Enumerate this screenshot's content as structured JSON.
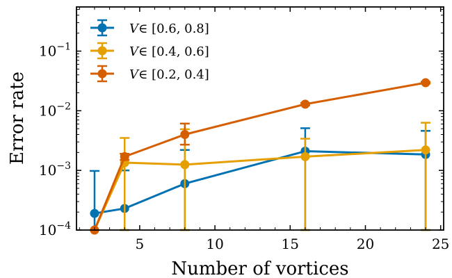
{
  "chart_data": {
    "type": "line",
    "xlabel": "Number of vortices",
    "ylabel": "Error rate",
    "xlim": [
      0.8,
      25.2
    ],
    "ylim": [
      0.0001,
      0.55
    ],
    "yscale": "log",
    "grid": false,
    "legend_position": "top-left",
    "x_ticks": [
      5,
      10,
      15,
      20,
      25
    ],
    "x_tick_labels": [
      "5",
      "10",
      "15",
      "20",
      "25"
    ],
    "y_ticks": [
      0.0001,
      0.001,
      0.01,
      0.1
    ],
    "y_tick_labels": [
      {
        "base": "10",
        "exp": "−4"
      },
      {
        "base": "10",
        "exp": "−3"
      },
      {
        "base": "10",
        "exp": "−2"
      },
      {
        "base": "10",
        "exp": "−1"
      }
    ],
    "series": [
      {
        "name": "∈ [0.6, 0.8]",
        "symbol": "V",
        "color": "#0072b2",
        "x": [
          2,
          4,
          8,
          16,
          24
        ],
        "y": [
          0.00019,
          0.00023,
          0.0006,
          0.0021,
          0.00185
        ],
        "err_low": [
          0.0001,
          0.0001,
          0.0001,
          0.0001,
          0.0001
        ],
        "err_high": [
          0.00098,
          0.001,
          0.0022,
          0.0051,
          0.0046
        ]
      },
      {
        "name": "∈ [0.4, 0.6]",
        "symbol": "V",
        "color": "#e69f00",
        "x": [
          2,
          4,
          8,
          16,
          24
        ],
        "y": [
          0.0001,
          0.00135,
          0.00125,
          0.0017,
          0.0022
        ],
        "err_low": [
          0.0001,
          0.0001,
          0.0001,
          0.0001,
          0.0001
        ],
        "err_high": [
          0.0001,
          0.0035,
          0.0049,
          0.0034,
          0.0063
        ]
      },
      {
        "name": "∈ [0.2, 0.4]",
        "symbol": "V",
        "color": "#d55e00",
        "x": [
          2,
          4,
          8,
          16,
          24
        ],
        "y": [
          0.0001,
          0.0017,
          0.004,
          0.0129,
          0.0295
        ],
        "err_low": [
          0.0001,
          0.0015,
          0.0027,
          0.0123,
          0.0285
        ],
        "err_high": [
          0.0001,
          0.0019,
          0.0061,
          0.0135,
          0.0305
        ]
      }
    ]
  }
}
